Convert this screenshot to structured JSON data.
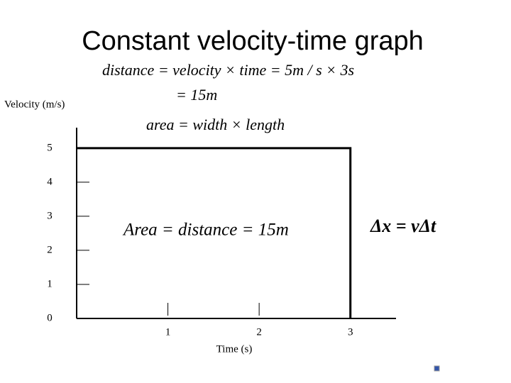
{
  "chart_data": {
    "type": "line",
    "title": "Constant velocity-time graph",
    "xlabel": "Time (s)",
    "ylabel": "Velocity (m/s)",
    "series": [
      {
        "name": "velocity",
        "color": "#000000",
        "x": [
          0,
          3,
          3
        ],
        "values": [
          5,
          5,
          0
        ]
      }
    ],
    "xlim": [
      0,
      3.5
    ],
    "xticks": [
      1,
      2,
      3
    ],
    "ylim": [
      0,
      5.6
    ],
    "yticks": [
      0,
      1,
      2,
      3,
      4,
      5
    ],
    "annotations": [
      "distance = velocity × time = 5m / s × 3s",
      "= 15m",
      "area = width × length",
      "Area = distance = 15m",
      "Δx = vΔt"
    ]
  }
}
